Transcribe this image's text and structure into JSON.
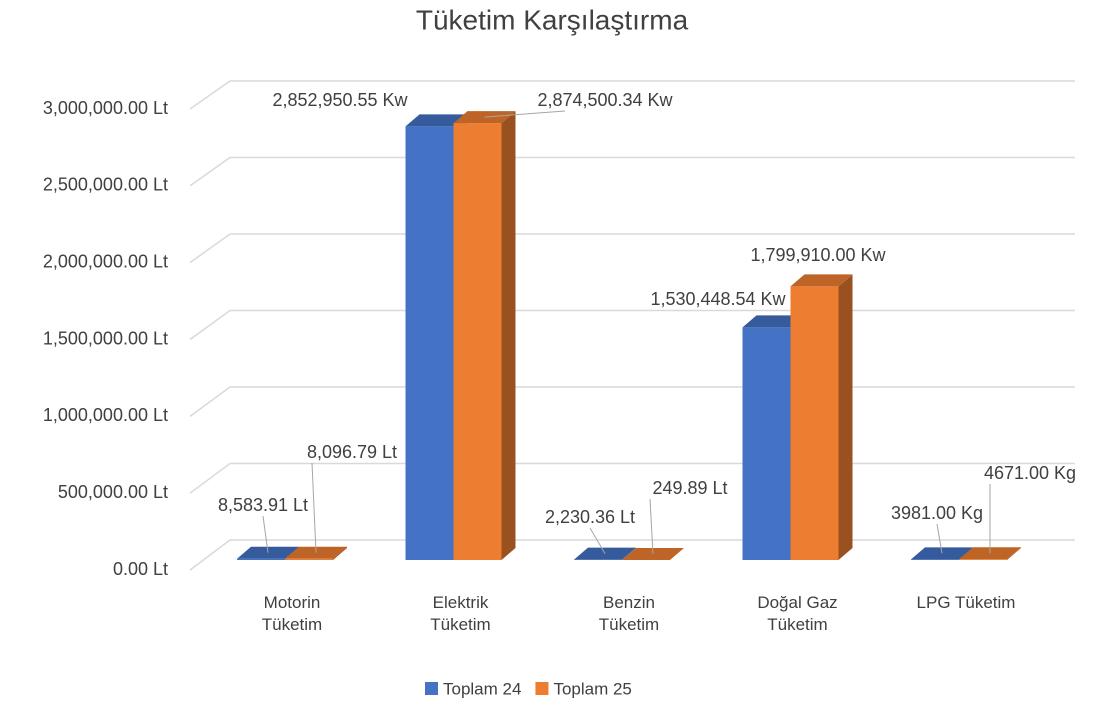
{
  "chart_data": {
    "type": "bar3d",
    "title": "Tüketim Karşılaştırma",
    "categories": [
      "Motorin Tüketim",
      "Elektrik Tüketim",
      "Benzin Tüketim",
      "Doğal Gaz Tüketim",
      "LPG Tüketim"
    ],
    "series": [
      {
        "name": "Toplam 24",
        "color": "#4472c4",
        "values": [
          8583.91,
          2852950.55,
          2230.36,
          1530448.54,
          3981
        ],
        "value_labels": [
          "8,583.91 Lt",
          "2,852,950.55 Kw",
          "2,230.36 Lt",
          "1,530,448.54 Kw",
          "3981.00 Kg"
        ]
      },
      {
        "name": "Toplam 25",
        "color": "#ed7d31",
        "values": [
          8096.79,
          2874500.34,
          249.89,
          1799910,
          4671
        ],
        "value_labels": [
          "8,096.79 Lt",
          "2,874,500.34 Kw",
          "249.89 Lt",
          "1,799,910.00 Kw",
          "4671.00 Kg"
        ]
      }
    ],
    "ylim": [
      0,
      3000000
    ],
    "yticks": [
      {
        "value": 0,
        "label": "0.00 Lt"
      },
      {
        "value": 500000,
        "label": "500,000.00 Lt"
      },
      {
        "value": 1000000,
        "label": "1,000,000.00 Lt"
      },
      {
        "value": 1500000,
        "label": "1,500,000.00 Lt"
      },
      {
        "value": 2000000,
        "label": "2,000,000.00 Lt"
      },
      {
        "value": 2500000,
        "label": "2,500,000.00 Lt"
      },
      {
        "value": 3000000,
        "label": "3,000,000.00 Lt"
      }
    ],
    "grid": true,
    "legend": "bottom"
  }
}
